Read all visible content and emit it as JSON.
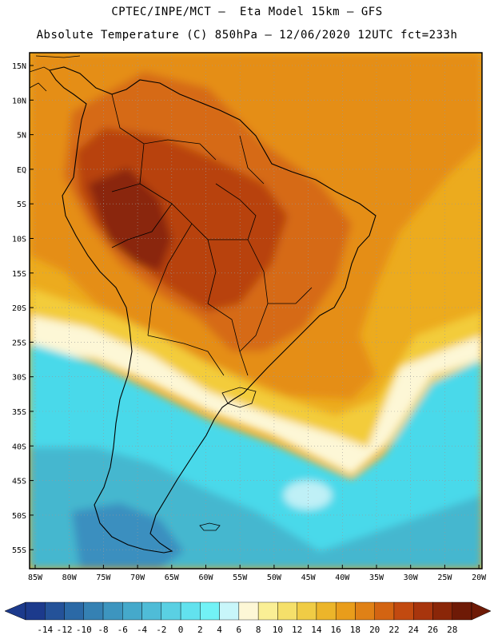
{
  "header": {
    "line1": "CPTEC/INPE/MCT –  Eta Model 15km – GFS",
    "line2": "Absolute Temperature (C) 850hPa – 12/06/2020 12UTC fct=233h"
  },
  "map": {
    "lat_labels": [
      "15N",
      "10N",
      "5N",
      "EQ",
      "5S",
      "10S",
      "15S",
      "20S",
      "25S",
      "30S",
      "35S",
      "40S",
      "45S",
      "50S",
      "55S"
    ],
    "lon_labels": [
      "85W",
      "80W",
      "75W",
      "70W",
      "65W",
      "60W",
      "55W",
      "50W",
      "45W",
      "40W",
      "35W",
      "30W",
      "25W",
      "20W"
    ],
    "colors": {
      "very_hot": "#8a2608",
      "hot": "#b8420c",
      "warm": "#d66a14",
      "orange": "#e58e17",
      "amber": "#ecab1e",
      "yellow": "#f3cc3a",
      "light_yellow": "#f8e98a",
      "pale": "#fdf7d6",
      "light_cyan": "#bff0f6",
      "cyan": "#48d9ea",
      "teal": "#45b7cf",
      "blue": "#3b8fbf",
      "land_line": "#000000"
    }
  },
  "colorbar": {
    "labels": [
      "-14",
      "-12",
      "-10",
      "-8",
      "-6",
      "-4",
      "-2",
      "0",
      "2",
      "4",
      "6",
      "8",
      "10",
      "12",
      "14",
      "16",
      "18",
      "20",
      "22",
      "24",
      "26",
      "28"
    ],
    "colors": [
      "#1c3a8c",
      "#245299",
      "#2b69a6",
      "#3581b3",
      "#3d95bf",
      "#45a9cb",
      "#4fbcd7",
      "#5ad0e3",
      "#62e2ee",
      "#72f2f6",
      "#c8f6fa",
      "#fdf7d6",
      "#faef95",
      "#f5e06a",
      "#f0cc45",
      "#ecb52a",
      "#e99d1b",
      "#e08116",
      "#d36412",
      "#c24a10",
      "#a8350d",
      "#8a2608",
      "#6e1a06"
    ]
  }
}
